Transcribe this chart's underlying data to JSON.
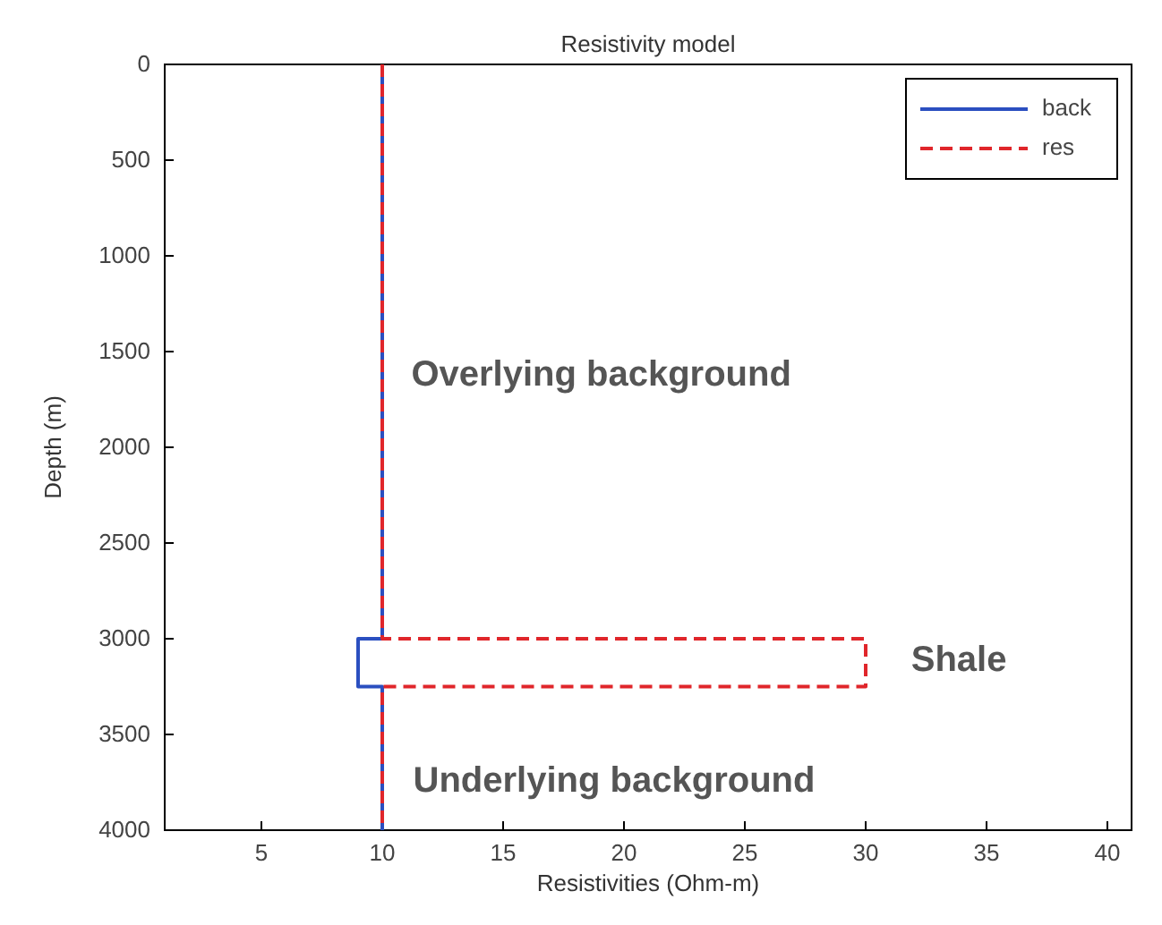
{
  "chart_data": {
    "type": "line",
    "title": "Resistivity model",
    "xlabel": "Resistivities (Ohm-m)",
    "ylabel": "Depth (m)",
    "xlim": [
      1,
      41
    ],
    "xticks": [
      5,
      10,
      15,
      20,
      25,
      30,
      35,
      40
    ],
    "ylim": [
      4000,
      0
    ],
    "yticks": [
      0,
      500,
      1000,
      1500,
      2000,
      2500,
      3000,
      3500,
      4000
    ],
    "series": [
      {
        "name": "back",
        "color": "#2b4fc0",
        "line_style": "solid",
        "x": [
          10,
          10,
          9,
          9,
          10,
          10
        ],
        "values": [
          0,
          3000,
          3000,
          3250,
          3250,
          4000
        ]
      },
      {
        "name": "res",
        "color": "#e0262b",
        "line_style": "dashed",
        "x": [
          10,
          10,
          30,
          30,
          10,
          10
        ],
        "values": [
          0,
          3000,
          3000,
          3250,
          3250,
          4000
        ]
      }
    ],
    "annotations": [
      "Overlying background",
      "Shale",
      "Underlying background"
    ],
    "legend": "top right",
    "grid": false
  }
}
